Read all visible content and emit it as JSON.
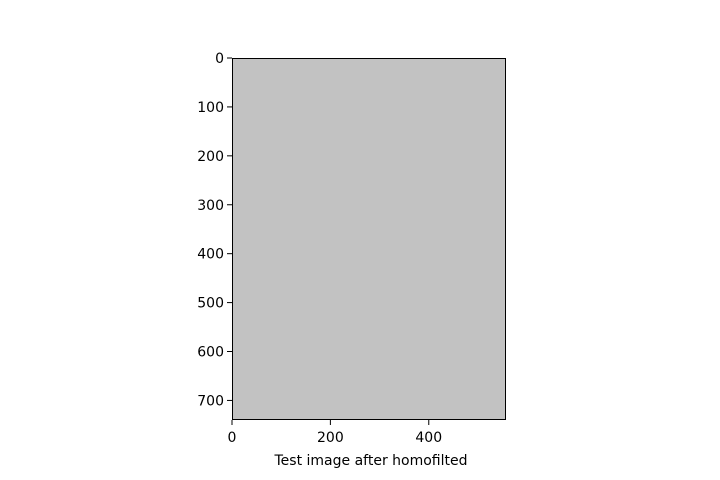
{
  "chart_data": {
    "type": "heatmap",
    "xlabel": "Test image after homofilted",
    "ylabel": "",
    "x_ticks": [
      0,
      200,
      400
    ],
    "y_ticks": [
      0,
      100,
      200,
      300,
      400,
      500,
      600,
      700
    ],
    "xlim": [
      0,
      557
    ],
    "ylim": [
      740,
      0
    ],
    "y_inverted": true,
    "fill_color": "#c2c2c2",
    "grid": false,
    "legend": "none"
  }
}
